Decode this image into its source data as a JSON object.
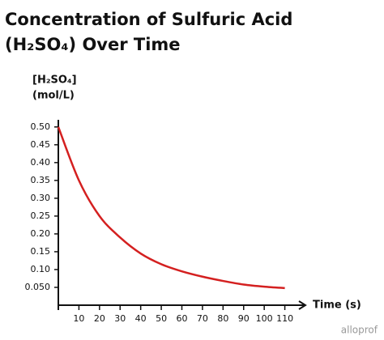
{
  "chart_data": {
    "type": "line",
    "title": [
      "Concentration of Sulfuric Acid",
      "(H₂SO₄) Over Time"
    ],
    "ylabel": [
      "[H₂SO₄]",
      "(mol/L)"
    ],
    "xlabel": "Time (s)",
    "watermark": "alloprof",
    "x": [
      0,
      10,
      20,
      30,
      40,
      50,
      60,
      70,
      80,
      90,
      100,
      110
    ],
    "series": [
      {
        "name": "[H₂SO₄]",
        "color": "#d42020",
        "values": [
          0.5,
          0.35,
          0.25,
          0.19,
          0.145,
          0.115,
          0.095,
          0.08,
          0.068,
          0.058,
          0.052,
          0.048
        ]
      }
    ],
    "xlim": [
      0,
      120
    ],
    "ylim": [
      0,
      0.52
    ],
    "xticks": [
      10,
      20,
      30,
      40,
      50,
      60,
      70,
      80,
      90,
      100,
      110
    ],
    "yticks": [
      {
        "value": 0.5,
        "label": "0.50"
      },
      0.45,
      {
        "value": 0.4,
        "label": "0.40"
      },
      0.35,
      {
        "value": 0.3,
        "label": "0.30"
      },
      0.25,
      {
        "value": 0.2,
        "label": "0.20"
      },
      0.15,
      {
        "value": 0.1,
        "label": "0.10"
      },
      {
        "value": 0.05,
        "label": "0.050"
      }
    ],
    "grid": false
  }
}
